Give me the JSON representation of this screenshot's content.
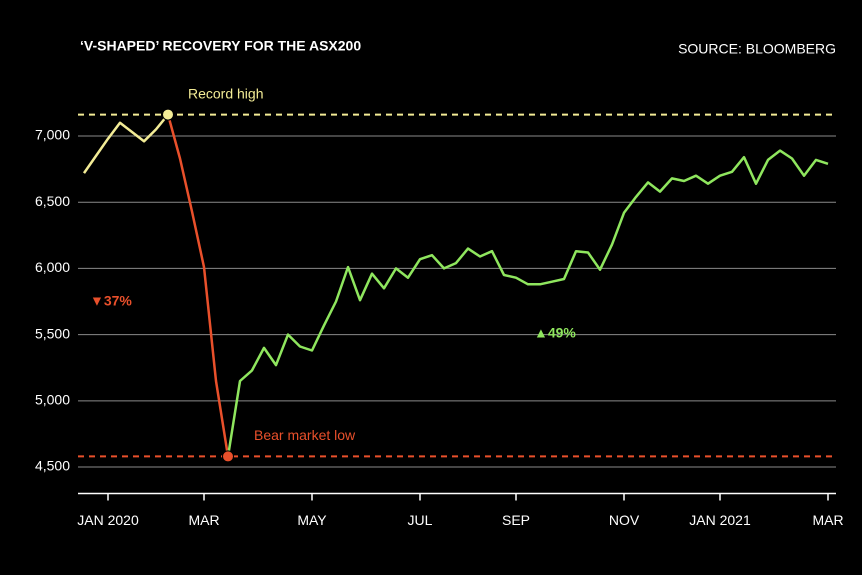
{
  "chart_data": {
    "type": "line",
    "title": "‘V-SHAPED’ RECOVERY FOR THE ASX200",
    "source": "SOURCE: BLOOMBERG",
    "categories": [
      null,
      null,
      "JAN 2020",
      null,
      null,
      null,
      null,
      null,
      null,
      null,
      "MAR",
      null,
      null,
      null,
      null,
      null,
      null,
      null,
      null,
      "MAY",
      null,
      null,
      null,
      null,
      null,
      null,
      null,
      null,
      "JUL",
      null,
      null,
      null,
      null,
      null,
      null,
      null,
      "SEP",
      null,
      null,
      null,
      null,
      null,
      null,
      null,
      null,
      "NOV",
      null,
      null,
      null,
      null,
      null,
      null,
      null,
      "JAN 2021",
      null,
      null,
      null,
      null,
      null,
      null,
      null,
      null,
      "MAR"
    ],
    "series": [
      {
        "color": "#f3ec96",
        "values": [
          6720,
          6850,
          6980,
          7100,
          7030,
          6960,
          7050,
          7162,
          null,
          null,
          null,
          null,
          null,
          null,
          null,
          null,
          null,
          null,
          null,
          null,
          null,
          null,
          null,
          null,
          null,
          null,
          null,
          null,
          null,
          null,
          null,
          null,
          null,
          null,
          null,
          null,
          null,
          null,
          null,
          null,
          null,
          null,
          null,
          null,
          null,
          null,
          null,
          null,
          null,
          null,
          null,
          null,
          null,
          null,
          null,
          null,
          null,
          null,
          null,
          null,
          null,
          null,
          null
        ]
      },
      {
        "color": "#e9502b",
        "values": [
          null,
          null,
          null,
          null,
          null,
          null,
          null,
          7162,
          6830,
          6430,
          6010,
          5150,
          4580,
          null,
          null,
          null,
          null,
          null,
          null,
          null,
          null,
          null,
          null,
          null,
          null,
          null,
          null,
          null,
          null,
          null,
          null,
          null,
          null,
          null,
          null,
          null,
          null,
          null,
          null,
          null,
          null,
          null,
          null,
          null,
          null,
          null,
          null,
          null,
          null,
          null,
          null,
          null,
          null,
          null,
          null,
          null,
          null,
          null,
          null,
          null,
          null,
          null,
          null
        ]
      },
      {
        "color": "#8fe65e",
        "values": [
          null,
          null,
          null,
          null,
          null,
          null,
          null,
          null,
          null,
          null,
          null,
          null,
          4580,
          5150,
          5230,
          5400,
          5270,
          5500,
          5410,
          5380,
          5570,
          5750,
          6010,
          5760,
          5960,
          5850,
          6000,
          5930,
          6070,
          6100,
          6000,
          6040,
          6150,
          6090,
          6130,
          5950,
          5930,
          5880,
          5880,
          5900,
          5920,
          6130,
          6120,
          5990,
          6180,
          6420,
          6540,
          6650,
          6580,
          6680,
          6660,
          6700,
          6640,
          6700,
          6730,
          6840,
          6640,
          6820,
          6890,
          6830,
          6700,
          6820,
          6790
        ]
      }
    ],
    "reference_lines": [
      {
        "value": 7162,
        "label": "Record high",
        "color": "#f3ec96"
      },
      {
        "value": 4580,
        "label": "Bear market low",
        "color": "#e9502b"
      }
    ],
    "annotations": [
      {
        "text": "▼37%",
        "color": "#e9502b"
      },
      {
        "text": "▲49%",
        "color": "#8fe65e"
      }
    ],
    "ylim": [
      4300,
      7300
    ],
    "yticks": [
      {
        "value": 4500,
        "label": "4,500"
      },
      {
        "value": 5000,
        "label": "5,000"
      },
      {
        "value": 5500,
        "label": "5,500"
      },
      {
        "value": 6000,
        "label": "6,000"
      },
      {
        "value": 6500,
        "label": "6,500"
      },
      {
        "value": 7000,
        "label": "7,000"
      }
    ],
    "grid": true
  }
}
